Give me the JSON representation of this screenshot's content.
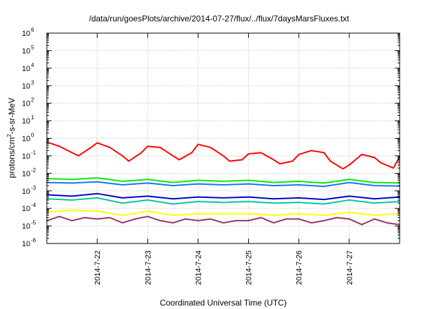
{
  "chart_data": {
    "type": "line",
    "title": "/data/run/goesPlots/archive/2014-07-27/flux/../flux/7daysMarsFluxes.txt",
    "xlabel": "Coordinated Universal Time (UTC)",
    "ylabel_base": "protons/cm",
    "ylabel_exp": "2",
    "ylabel_rest": "-s-sr-MeV",
    "yscale": "log",
    "ylim": [
      1e-06,
      1000000.0
    ],
    "grid": true,
    "legend": "none",
    "y_ticks": [
      {
        "base": "10",
        "exp": "-6",
        "value": 1e-06
      },
      {
        "base": "10",
        "exp": "-5",
        "value": 1e-05
      },
      {
        "base": "10",
        "exp": "-4",
        "value": 0.0001
      },
      {
        "base": "10",
        "exp": "-3",
        "value": 0.001
      },
      {
        "base": "10",
        "exp": "-2",
        "value": 0.01
      },
      {
        "base": "10",
        "exp": "-1",
        "value": 0.1
      },
      {
        "base": "10",
        "exp": "0",
        "value": 1
      },
      {
        "base": "10",
        "exp": "1",
        "value": 10.0
      },
      {
        "base": "10",
        "exp": "2",
        "value": 100.0
      },
      {
        "base": "10",
        "exp": "3",
        "value": 1000.0
      },
      {
        "base": "10",
        "exp": "4",
        "value": 10000.0
      },
      {
        "base": "10",
        "exp": "5",
        "value": 100000.0
      },
      {
        "base": "10",
        "exp": "6",
        "value": 1000000.0
      }
    ],
    "x_range": [
      "2014-07-21T00:00",
      "2014-07-28T00:00"
    ],
    "x_ticks": [
      {
        "label": "2014-7-22",
        "value": "2014-07-22T00:00"
      },
      {
        "label": "2014-7-23",
        "value": "2014-07-23T00:00"
      },
      {
        "label": "2014-7-24",
        "value": "2014-07-24T00:00"
      },
      {
        "label": "2014-7-25",
        "value": "2014-07-25T00:00"
      },
      {
        "label": "2014-7-26",
        "value": "2014-07-26T00:00"
      },
      {
        "label": "2014-7-27",
        "value": "2014-07-27T00:00"
      }
    ],
    "series": [
      {
        "color": "#ff0000",
        "x": [
          "2014-07-21T00:00",
          "2014-07-21T06:00",
          "2014-07-21T12:00",
          "2014-07-21T15:00",
          "2014-07-21T21:00",
          "2014-07-22T00:00",
          "2014-07-22T06:00",
          "2014-07-22T12:00",
          "2014-07-22T15:00",
          "2014-07-22T21:00",
          "2014-07-23T00:00",
          "2014-07-23T06:00",
          "2014-07-23T12:00",
          "2014-07-23T15:00",
          "2014-07-23T21:00",
          "2014-07-24T00:00",
          "2014-07-24T06:00",
          "2014-07-24T12:00",
          "2014-07-24T15:00",
          "2014-07-24T21:00",
          "2014-07-25T00:00",
          "2014-07-25T06:00",
          "2014-07-25T12:00",
          "2014-07-25T15:00",
          "2014-07-25T21:00",
          "2014-07-26T00:00",
          "2014-07-26T06:00",
          "2014-07-26T12:00",
          "2014-07-26T15:00",
          "2014-07-26T21:00",
          "2014-07-27T00:00",
          "2014-07-27T06:00",
          "2014-07-27T12:00",
          "2014-07-27T15:00",
          "2014-07-27T21:00",
          "2014-07-28T00:00"
        ],
        "values": [
          0.6,
          0.35,
          0.15,
          0.1,
          0.3,
          0.55,
          0.3,
          0.1,
          0.05,
          0.15,
          0.35,
          0.3,
          0.1,
          0.06,
          0.15,
          0.45,
          0.3,
          0.1,
          0.05,
          0.06,
          0.13,
          0.15,
          0.06,
          0.035,
          0.05,
          0.12,
          0.2,
          0.15,
          0.05,
          0.018,
          0.03,
          0.12,
          0.08,
          0.04,
          0.02,
          0.09
        ]
      },
      {
        "color": "#00ee00",
        "x": [
          "2014-07-21T00:00",
          "2014-07-21T12:00",
          "2014-07-22T00:00",
          "2014-07-22T12:00",
          "2014-07-23T00:00",
          "2014-07-23T12:00",
          "2014-07-24T00:00",
          "2014-07-24T12:00",
          "2014-07-25T00:00",
          "2014-07-25T12:00",
          "2014-07-26T00:00",
          "2014-07-26T12:00",
          "2014-07-27T00:00",
          "2014-07-27T12:00",
          "2014-07-28T00:00"
        ],
        "values": [
          0.005,
          0.0045,
          0.0055,
          0.0035,
          0.0045,
          0.003,
          0.004,
          0.0035,
          0.004,
          0.003,
          0.0035,
          0.0028,
          0.0045,
          0.003,
          0.0028
        ]
      },
      {
        "color": "#1f6fff",
        "x": [
          "2014-07-21T00:00",
          "2014-07-21T12:00",
          "2014-07-22T00:00",
          "2014-07-22T12:00",
          "2014-07-23T00:00",
          "2014-07-23T12:00",
          "2014-07-24T00:00",
          "2014-07-24T12:00",
          "2014-07-25T00:00",
          "2014-07-25T12:00",
          "2014-07-26T00:00",
          "2014-07-26T12:00",
          "2014-07-27T00:00",
          "2014-07-27T12:00",
          "2014-07-28T00:00"
        ],
        "values": [
          0.003,
          0.0028,
          0.0033,
          0.0022,
          0.0028,
          0.002,
          0.0025,
          0.0022,
          0.0025,
          0.002,
          0.0022,
          0.0018,
          0.003,
          0.002,
          0.0019
        ]
      },
      {
        "color": "#0000cc",
        "x": [
          "2014-07-21T00:00",
          "2014-07-21T12:00",
          "2014-07-22T00:00",
          "2014-07-22T12:00",
          "2014-07-23T00:00",
          "2014-07-23T12:00",
          "2014-07-24T00:00",
          "2014-07-24T12:00",
          "2014-07-25T00:00",
          "2014-07-25T12:00",
          "2014-07-26T00:00",
          "2014-07-26T12:00",
          "2014-07-27T00:00",
          "2014-07-27T12:00",
          "2014-07-28T00:00"
        ],
        "values": [
          0.0006,
          0.0005,
          0.0007,
          0.0004,
          0.0005,
          0.00035,
          0.00045,
          0.0004,
          0.00045,
          0.00035,
          0.0004,
          0.00032,
          0.0005,
          0.00035,
          0.00045
        ]
      },
      {
        "color": "#00c8a0",
        "x": [
          "2014-07-21T00:00",
          "2014-07-21T12:00",
          "2014-07-22T00:00",
          "2014-07-22T12:00",
          "2014-07-23T00:00",
          "2014-07-23T12:00",
          "2014-07-24T00:00",
          "2014-07-24T12:00",
          "2014-07-25T00:00",
          "2014-07-25T12:00",
          "2014-07-26T00:00",
          "2014-07-26T12:00",
          "2014-07-27T00:00",
          "2014-07-27T12:00",
          "2014-07-28T00:00"
        ],
        "values": [
          0.00035,
          0.0003,
          0.0004,
          0.0002,
          0.0003,
          0.00018,
          0.00025,
          0.00022,
          0.00025,
          0.0002,
          0.00022,
          0.00018,
          0.0003,
          0.0002,
          0.00025
        ]
      },
      {
        "color": "#ffff00",
        "x": [
          "2014-07-21T00:00",
          "2014-07-21T12:00",
          "2014-07-22T00:00",
          "2014-07-22T12:00",
          "2014-07-23T00:00",
          "2014-07-23T12:00",
          "2014-07-24T00:00",
          "2014-07-24T12:00",
          "2014-07-25T00:00",
          "2014-07-25T12:00",
          "2014-07-26T00:00",
          "2014-07-26T12:00",
          "2014-07-27T00:00",
          "2014-07-27T12:00",
          "2014-07-28T00:00"
        ],
        "values": [
          6e-05,
          8e-05,
          7e-05,
          4e-05,
          7e-05,
          4e-05,
          5e-05,
          5e-05,
          5e-05,
          4e-05,
          5e-05,
          4e-05,
          6e-05,
          4e-05,
          5e-05
        ]
      },
      {
        "color": "#993366",
        "x": [
          "2014-07-21T00:00",
          "2014-07-21T06:00",
          "2014-07-21T12:00",
          "2014-07-21T18:00",
          "2014-07-22T00:00",
          "2014-07-22T06:00",
          "2014-07-22T12:00",
          "2014-07-22T18:00",
          "2014-07-23T00:00",
          "2014-07-23T06:00",
          "2014-07-23T12:00",
          "2014-07-23T18:00",
          "2014-07-24T00:00",
          "2014-07-24T06:00",
          "2014-07-24T12:00",
          "2014-07-24T18:00",
          "2014-07-25T00:00",
          "2014-07-25T06:00",
          "2014-07-25T12:00",
          "2014-07-25T18:00",
          "2014-07-26T00:00",
          "2014-07-26T06:00",
          "2014-07-26T12:00",
          "2014-07-26T18:00",
          "2014-07-27T00:00",
          "2014-07-27T06:00",
          "2014-07-27T12:00",
          "2014-07-27T18:00",
          "2014-07-28T00:00"
        ],
        "values": [
          2e-05,
          3.5e-05,
          2e-05,
          3e-05,
          2.5e-05,
          3e-05,
          1.5e-05,
          2.5e-05,
          3.5e-05,
          2e-05,
          1.5e-05,
          2.5e-05,
          2e-05,
          2.5e-05,
          1.5e-05,
          2e-05,
          2e-05,
          3e-05,
          1.5e-05,
          2.5e-05,
          2.5e-05,
          1.5e-05,
          2e-05,
          3e-05,
          2.5e-05,
          1.2e-05,
          2.5e-05,
          1.5e-05,
          1.2e-05
        ]
      }
    ]
  }
}
